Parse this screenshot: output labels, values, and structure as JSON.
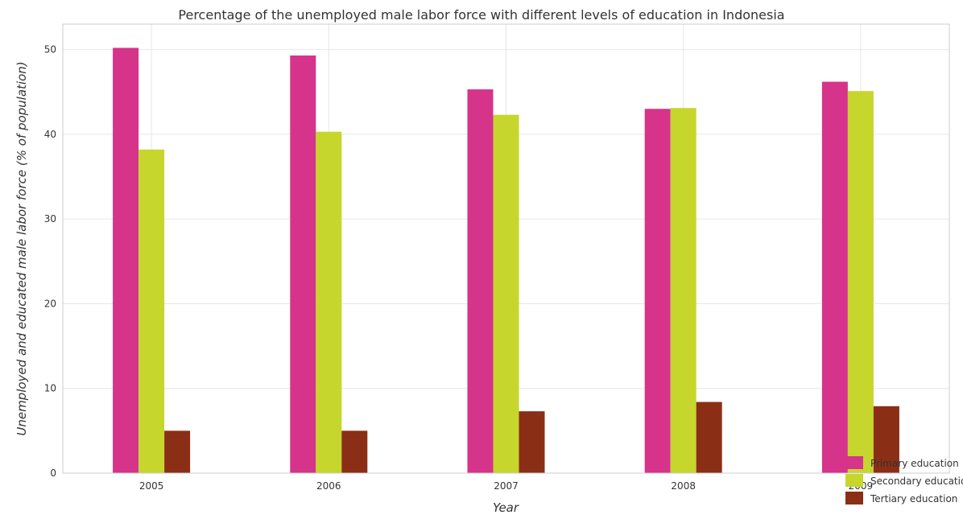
{
  "chart_data": {
    "type": "bar",
    "title": "Percentage of the unemployed male labor force with different levels of education in Indonesia",
    "xlabel": "Year",
    "ylabel": "Unemployed and educated male labor force (% of population)",
    "categories": [
      "2005",
      "2006",
      "2007",
      "2008",
      "2009"
    ],
    "ylim": [
      0,
      53
    ],
    "yticks": [
      0,
      10,
      20,
      30,
      40,
      50
    ],
    "grid": true,
    "legend_position": "bottom-right",
    "series": [
      {
        "name": "Primary education",
        "color": "#d6338a",
        "values": [
          50.2,
          49.3,
          45.3,
          43.0,
          46.2
        ]
      },
      {
        "name": "Secondary education",
        "color": "#c6d62d",
        "values": [
          38.2,
          40.3,
          42.3,
          43.1,
          45.1
        ]
      },
      {
        "name": "Tertiary education",
        "color": "#8b2e16",
        "values": [
          5.0,
          5.0,
          7.3,
          8.4,
          7.9
        ]
      }
    ]
  }
}
